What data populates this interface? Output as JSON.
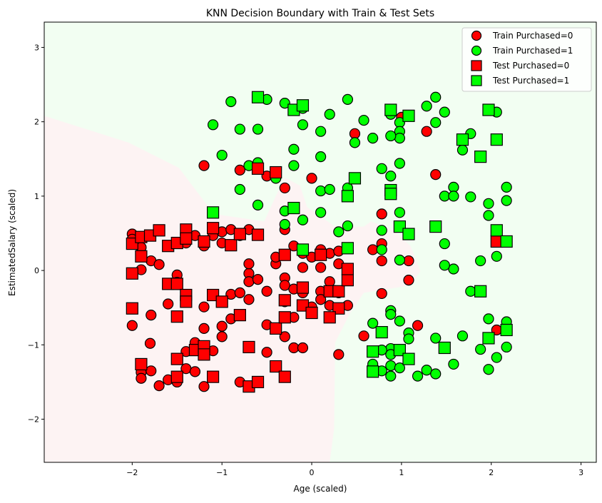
{
  "chart_data": {
    "type": "scatter",
    "title": "KNN Decision Boundary with Train & Test Sets",
    "xlabel": "Age (scaled)",
    "ylabel": "EstimatedSalary (scaled)",
    "xlim": [
      -2.98,
      3.17
    ],
    "ylim": [
      -2.58,
      3.34
    ],
    "xticks": [
      -2,
      -1,
      0,
      1,
      2,
      3
    ],
    "yticks": [
      -2,
      -1,
      0,
      1,
      2,
      3
    ],
    "xtick_labels": [
      "−2",
      "−1",
      "0",
      "1",
      "2",
      "3"
    ],
    "ytick_labels": [
      "−2",
      "−1",
      "0",
      "1",
      "2",
      "3"
    ],
    "grid": false,
    "legend_position": "top-right",
    "colors": {
      "class0": "#ff0000",
      "class1": "#00ff00",
      "region0": "#fdf3f3",
      "region1": "#f2fef2",
      "edge": "#000000"
    },
    "decision_region_class0": [
      [
        -2.98,
        2.08
      ],
      [
        -2.04,
        1.72
      ],
      [
        -1.48,
        1.38
      ],
      [
        -1.09,
        0.76
      ],
      [
        -0.53,
        0.66
      ],
      [
        -0.4,
        1.0
      ],
      [
        -0.3,
        1.25
      ],
      [
        -0.13,
        1.14
      ],
      [
        -0.05,
        0.85
      ],
      [
        0.26,
        0.59
      ],
      [
        0.58,
        0.59
      ],
      [
        0.66,
        0.66
      ],
      [
        0.9,
        0.55
      ],
      [
        1.1,
        0.33
      ],
      [
        1.21,
        -0.01
      ],
      [
        1.1,
        -0.2
      ],
      [
        0.58,
        -0.3
      ],
      [
        0.42,
        -0.59
      ],
      [
        0.26,
        -0.97
      ],
      [
        0.25,
        -2.12
      ],
      [
        0.2,
        -2.58
      ],
      [
        -2.98,
        -2.58
      ]
    ],
    "series": [
      {
        "name": "Train Purchased=0",
        "marker": "circle",
        "color": "#ff0000",
        "points": [
          [
            -2.0,
            0.49
          ],
          [
            -1.9,
            0.31
          ],
          [
            -2.0,
            -0.74
          ],
          [
            -1.9,
            0.01
          ],
          [
            -1.8,
            -0.98
          ],
          [
            -1.79,
            -0.6
          ],
          [
            -1.79,
            0.13
          ],
          [
            -1.7,
            0.08
          ],
          [
            -1.7,
            -1.55
          ],
          [
            -1.6,
            -1.47
          ],
          [
            -1.9,
            -1.37
          ],
          [
            -1.9,
            -1.45
          ],
          [
            -1.79,
            -1.35
          ],
          [
            -1.5,
            -0.06
          ],
          [
            -1.5,
            -1.5
          ],
          [
            -1.4,
            -1.09
          ],
          [
            -1.4,
            -1.32
          ],
          [
            -1.3,
            -0.97
          ],
          [
            -1.3,
            -1.36
          ],
          [
            -1.6,
            -0.45
          ],
          [
            -1.5,
            -0.16
          ],
          [
            -1.2,
            -0.49
          ],
          [
            -1.2,
            -0.78
          ],
          [
            -1.2,
            -1.56
          ],
          [
            -1.1,
            -1.08
          ],
          [
            -1.0,
            -0.89
          ],
          [
            -1.0,
            -0.75
          ],
          [
            -0.9,
            -0.65
          ],
          [
            -0.9,
            -0.32
          ],
          [
            -0.8,
            -0.3
          ],
          [
            -0.8,
            -1.5
          ],
          [
            -0.7,
            -0.39
          ],
          [
            -0.7,
            -0.04
          ],
          [
            -0.7,
            -0.15
          ],
          [
            -0.7,
            0.09
          ],
          [
            -0.6,
            -0.12
          ],
          [
            -0.5,
            -0.28
          ],
          [
            -0.5,
            -0.73
          ],
          [
            -0.5,
            -1.1
          ],
          [
            -0.4,
            0.09
          ],
          [
            -0.3,
            -0.1
          ],
          [
            -0.3,
            -0.42
          ],
          [
            -0.3,
            -0.89
          ],
          [
            -0.2,
            -1.04
          ],
          [
            -0.1,
            -1.04
          ],
          [
            -0.2,
            -0.63
          ],
          [
            0.0,
            -0.49
          ],
          [
            0.1,
            -0.28
          ],
          [
            0.2,
            -0.15
          ],
          [
            0.3,
            -0.3
          ],
          [
            0.3,
            -1.13
          ],
          [
            0.4,
            -0.47
          ],
          [
            -1.2,
            1.41
          ],
          [
            -0.8,
            1.35
          ],
          [
            -0.5,
            1.27
          ],
          [
            -0.3,
            1.11
          ],
          [
            0.0,
            1.24
          ],
          [
            0.48,
            1.84
          ],
          [
            1.0,
            2.06
          ],
          [
            1.28,
            1.87
          ],
          [
            1.38,
            1.29
          ],
          [
            0.78,
            0.76
          ],
          [
            0.78,
            0.36
          ],
          [
            0.68,
            0.28
          ],
          [
            0.78,
            0.13
          ],
          [
            1.08,
            0.13
          ],
          [
            1.08,
            -0.13
          ],
          [
            0.78,
            -0.31
          ],
          [
            0.58,
            -0.88
          ],
          [
            1.18,
            -0.74
          ],
          [
            2.06,
            -0.8
          ],
          [
            -2.0,
            0.42
          ],
          [
            -1.4,
            0.37
          ],
          [
            -1.3,
            0.47
          ],
          [
            -1.2,
            0.33
          ],
          [
            -1.1,
            0.47
          ],
          [
            -1.0,
            0.52
          ],
          [
            -1.0,
            0.37
          ],
          [
            -0.9,
            0.55
          ],
          [
            -0.8,
            0.47
          ],
          [
            -0.7,
            0.55
          ],
          [
            -0.3,
            0.55
          ],
          [
            -0.2,
            0.33
          ],
          [
            -0.1,
            0.23
          ],
          [
            0.0,
            0.18
          ],
          [
            0.1,
            0.28
          ],
          [
            0.2,
            0.23
          ],
          [
            0.3,
            0.26
          ],
          [
            -0.1,
            0.04
          ],
          [
            0.1,
            0.04
          ],
          [
            0.3,
            0.09
          ],
          [
            0.4,
            -0.01
          ],
          [
            -0.3,
            -0.2
          ],
          [
            -0.2,
            -0.25
          ],
          [
            -0.1,
            -0.3
          ],
          [
            0.1,
            -0.39
          ],
          [
            0.2,
            -0.47
          ],
          [
            -0.4,
            0.18
          ]
        ]
      },
      {
        "name": "Train Purchased=1",
        "marker": "circle",
        "color": "#00ff00",
        "points": [
          [
            -0.9,
            2.27
          ],
          [
            -0.5,
            2.3
          ],
          [
            -0.3,
            2.25
          ],
          [
            -0.1,
            2.18
          ],
          [
            -1.1,
            1.96
          ],
          [
            -0.8,
            1.9
          ],
          [
            -0.6,
            1.9
          ],
          [
            -0.1,
            1.96
          ],
          [
            0.1,
            1.87
          ],
          [
            0.2,
            2.1
          ],
          [
            0.4,
            2.3
          ],
          [
            0.58,
            2.02
          ],
          [
            0.68,
            1.78
          ],
          [
            0.48,
            1.72
          ],
          [
            -1.0,
            1.55
          ],
          [
            -0.6,
            1.45
          ],
          [
            -0.2,
            1.63
          ],
          [
            0.1,
            1.53
          ],
          [
            -0.7,
            1.41
          ],
          [
            -0.2,
            1.41
          ],
          [
            0.78,
            1.37
          ],
          [
            0.88,
            1.27
          ],
          [
            0.98,
            1.44
          ],
          [
            -0.8,
            1.09
          ],
          [
            -0.4,
            1.24
          ],
          [
            0.1,
            1.07
          ],
          [
            0.2,
            1.09
          ],
          [
            0.4,
            1.11
          ],
          [
            -0.6,
            0.88
          ],
          [
            -0.3,
            0.8
          ],
          [
            -0.1,
            0.68
          ],
          [
            0.1,
            0.78
          ],
          [
            -0.3,
            0.62
          ],
          [
            0.3,
            0.52
          ],
          [
            0.4,
            0.6
          ],
          [
            0.78,
            0.54
          ],
          [
            0.98,
            0.78
          ],
          [
            0.78,
            0.28
          ],
          [
            0.98,
            0.14
          ],
          [
            0.68,
            -0.71
          ],
          [
            0.88,
            -0.54
          ],
          [
            0.88,
            -0.59
          ],
          [
            0.98,
            -0.68
          ],
          [
            1.08,
            -0.84
          ],
          [
            1.08,
            -0.92
          ],
          [
            0.88,
            -1.05
          ],
          [
            0.88,
            -1.13
          ],
          [
            0.78,
            -1.07
          ],
          [
            0.68,
            -1.26
          ],
          [
            0.88,
            -1.28
          ],
          [
            0.98,
            -1.31
          ],
          [
            0.78,
            -1.35
          ],
          [
            0.88,
            -1.42
          ],
          [
            1.18,
            -1.42
          ],
          [
            1.28,
            -1.34
          ],
          [
            1.38,
            -1.39
          ],
          [
            1.38,
            -0.91
          ],
          [
            1.68,
            -0.88
          ],
          [
            1.58,
            -1.26
          ],
          [
            1.88,
            -1.06
          ],
          [
            1.97,
            -1.33
          ],
          [
            2.06,
            -1.17
          ],
          [
            2.17,
            -1.03
          ],
          [
            2.17,
            -0.69
          ],
          [
            1.97,
            -0.65
          ],
          [
            1.77,
            -0.28
          ],
          [
            1.58,
            0.02
          ],
          [
            1.48,
            0.07
          ],
          [
            1.48,
            0.36
          ],
          [
            2.06,
            0.19
          ],
          [
            1.97,
            0.74
          ],
          [
            2.17,
            0.94
          ],
          [
            1.97,
            0.9
          ],
          [
            2.17,
            1.12
          ],
          [
            1.77,
            0.99
          ],
          [
            1.58,
            1.12
          ],
          [
            1.48,
            1.0
          ],
          [
            1.58,
            1.0
          ],
          [
            2.06,
            2.13
          ],
          [
            1.77,
            1.84
          ],
          [
            1.68,
            1.62
          ],
          [
            1.38,
            2.33
          ],
          [
            1.28,
            2.21
          ],
          [
            1.48,
            2.13
          ],
          [
            1.38,
            1.99
          ],
          [
            0.98,
            1.99
          ],
          [
            0.98,
            1.87
          ],
          [
            0.98,
            1.78
          ],
          [
            0.88,
            1.81
          ],
          [
            0.88,
            2.1
          ],
          [
            1.88,
            0.13
          ]
        ]
      },
      {
        "name": "Test Purchased=0",
        "marker": "square",
        "color": "#ff0000",
        "points": [
          [
            -2.0,
            0.36
          ],
          [
            -1.9,
            0.45
          ],
          [
            -1.8,
            0.47
          ],
          [
            -1.7,
            0.54
          ],
          [
            -2.0,
            -0.04
          ],
          [
            -1.9,
            0.19
          ],
          [
            -1.6,
            0.33
          ],
          [
            -1.5,
            0.37
          ],
          [
            -1.4,
            0.55
          ],
          [
            -1.4,
            0.43
          ],
          [
            -1.2,
            0.39
          ],
          [
            -1.1,
            0.57
          ],
          [
            -0.9,
            0.34
          ],
          [
            -0.8,
            0.49
          ],
          [
            -0.6,
            0.48
          ],
          [
            -2.0,
            -0.51
          ],
          [
            -1.6,
            -0.18
          ],
          [
            -1.5,
            -0.18
          ],
          [
            -1.4,
            -0.33
          ],
          [
            -1.4,
            -0.42
          ],
          [
            -1.5,
            -0.62
          ],
          [
            -1.1,
            -0.33
          ],
          [
            -1.0,
            -0.42
          ],
          [
            -0.8,
            -0.6
          ],
          [
            -1.3,
            -1.07
          ],
          [
            -1.2,
            -1.02
          ],
          [
            -1.2,
            -1.13
          ],
          [
            -1.9,
            -1.26
          ],
          [
            -1.5,
            -1.19
          ],
          [
            -1.5,
            -1.43
          ],
          [
            -1.1,
            -1.43
          ],
          [
            -0.7,
            -1.03
          ],
          [
            -0.7,
            -1.56
          ],
          [
            -0.6,
            -1.5
          ],
          [
            -0.4,
            -1.29
          ],
          [
            -0.3,
            -1.43
          ],
          [
            -0.4,
            -0.78
          ],
          [
            -0.3,
            -0.4
          ],
          [
            -0.3,
            -0.63
          ],
          [
            -0.3,
            0.21
          ],
          [
            -0.1,
            -0.23
          ],
          [
            -0.1,
            -0.47
          ],
          [
            0.0,
            -0.57
          ],
          [
            0.1,
            0.21
          ],
          [
            0.2,
            -0.28
          ],
          [
            0.3,
            -0.51
          ],
          [
            0.3,
            -0.28
          ],
          [
            0.4,
            -0.13
          ],
          [
            0.4,
            0.02
          ],
          [
            -0.6,
            1.37
          ],
          [
            -0.4,
            1.32
          ],
          [
            0.2,
            -0.63
          ],
          [
            2.06,
            0.39
          ]
        ]
      },
      {
        "name": "Test Purchased=1",
        "marker": "square",
        "color": "#00ff00",
        "points": [
          [
            -0.6,
            2.33
          ],
          [
            -0.2,
            2.16
          ],
          [
            -0.1,
            2.22
          ],
          [
            0.88,
            2.16
          ],
          [
            1.08,
            2.08
          ],
          [
            1.68,
            1.76
          ],
          [
            1.97,
            2.16
          ],
          [
            2.06,
            1.76
          ],
          [
            1.88,
            1.53
          ],
          [
            0.48,
            1.24
          ],
          [
            0.4,
            1.0
          ],
          [
            0.88,
            1.08
          ],
          [
            0.88,
            1.03
          ],
          [
            -0.2,
            0.84
          ],
          [
            -1.1,
            0.78
          ],
          [
            0.98,
            0.59
          ],
          [
            1.08,
            0.49
          ],
          [
            1.38,
            0.59
          ],
          [
            2.06,
            0.54
          ],
          [
            2.17,
            0.39
          ],
          [
            -0.1,
            0.28
          ],
          [
            0.4,
            0.3
          ],
          [
            1.88,
            -0.28
          ],
          [
            1.97,
            -0.91
          ],
          [
            2.17,
            -0.8
          ],
          [
            1.48,
            -1.04
          ],
          [
            0.78,
            -0.83
          ],
          [
            0.68,
            -1.09
          ],
          [
            0.98,
            -1.07
          ],
          [
            1.08,
            -1.19
          ],
          [
            0.68,
            -1.36
          ]
        ]
      }
    ]
  }
}
